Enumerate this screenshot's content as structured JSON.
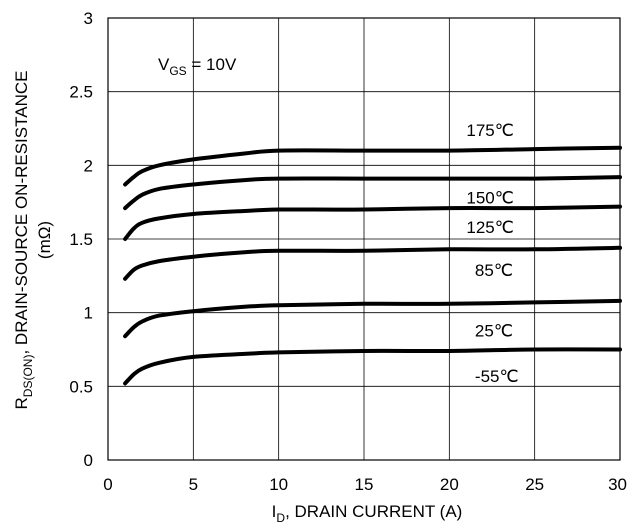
{
  "chart_data": {
    "type": "line",
    "title": "",
    "annotation": {
      "main": "V",
      "sub": "GS",
      "rest": " = 10V"
    },
    "xlabel": {
      "main": "I",
      "sub": "D",
      "rest": ", DRAIN CURRENT (A)"
    },
    "ylabel": {
      "main": "R",
      "sub": "DS(ON)",
      "rest": ",  DRAIN-SOURCE ON-RESISTANCE",
      "line2": "(mΩ)"
    },
    "xlim": [
      0,
      30
    ],
    "ylim": [
      0,
      3
    ],
    "x_ticks": [
      "0",
      "5",
      "10",
      "15",
      "20",
      "25",
      "30"
    ],
    "y_ticks": [
      "0",
      "0.5",
      "1",
      "1.5",
      "2",
      "2.5",
      "3"
    ],
    "grid": true,
    "series": [
      {
        "name": "175℃",
        "x": [
          1,
          1.5,
          2,
          3,
          5,
          8,
          10,
          15,
          20,
          25,
          30
        ],
        "y": [
          1.87,
          1.92,
          1.96,
          2.0,
          2.04,
          2.08,
          2.1,
          2.1,
          2.1,
          2.11,
          2.12
        ],
        "label_x": 21,
        "label_y": 2.24
      },
      {
        "name": "150℃",
        "x": [
          1,
          1.5,
          2,
          3,
          5,
          8,
          10,
          15,
          20,
          25,
          30
        ],
        "y": [
          1.71,
          1.76,
          1.8,
          1.84,
          1.87,
          1.9,
          1.91,
          1.91,
          1.91,
          1.91,
          1.92
        ],
        "label_x": 21,
        "label_y": 1.78
      },
      {
        "name": "125℃",
        "x": [
          1,
          1.5,
          2,
          3,
          5,
          8,
          10,
          15,
          20,
          25,
          30
        ],
        "y": [
          1.5,
          1.57,
          1.61,
          1.64,
          1.67,
          1.69,
          1.7,
          1.7,
          1.71,
          1.71,
          1.72
        ],
        "label_x": 21,
        "label_y": 1.58
      },
      {
        "name": "85℃",
        "x": [
          1,
          1.5,
          2,
          3,
          5,
          8,
          10,
          15,
          20,
          25,
          30
        ],
        "y": [
          1.23,
          1.29,
          1.32,
          1.35,
          1.38,
          1.41,
          1.42,
          1.42,
          1.43,
          1.43,
          1.44
        ],
        "label_x": 21.5,
        "label_y": 1.29
      },
      {
        "name": "25℃",
        "x": [
          1,
          1.5,
          2,
          3,
          5,
          8,
          10,
          15,
          20,
          25,
          30
        ],
        "y": [
          0.84,
          0.9,
          0.94,
          0.98,
          1.01,
          1.04,
          1.05,
          1.06,
          1.06,
          1.07,
          1.08
        ],
        "label_x": 21.5,
        "label_y": 0.88
      },
      {
        "name": "-55℃",
        "x": [
          1,
          1.5,
          2,
          3,
          5,
          8,
          10,
          15,
          20,
          25,
          30
        ],
        "y": [
          0.52,
          0.58,
          0.62,
          0.66,
          0.7,
          0.72,
          0.73,
          0.74,
          0.74,
          0.75,
          0.75
        ],
        "label_x": 21.5,
        "label_y": 0.57
      }
    ]
  }
}
